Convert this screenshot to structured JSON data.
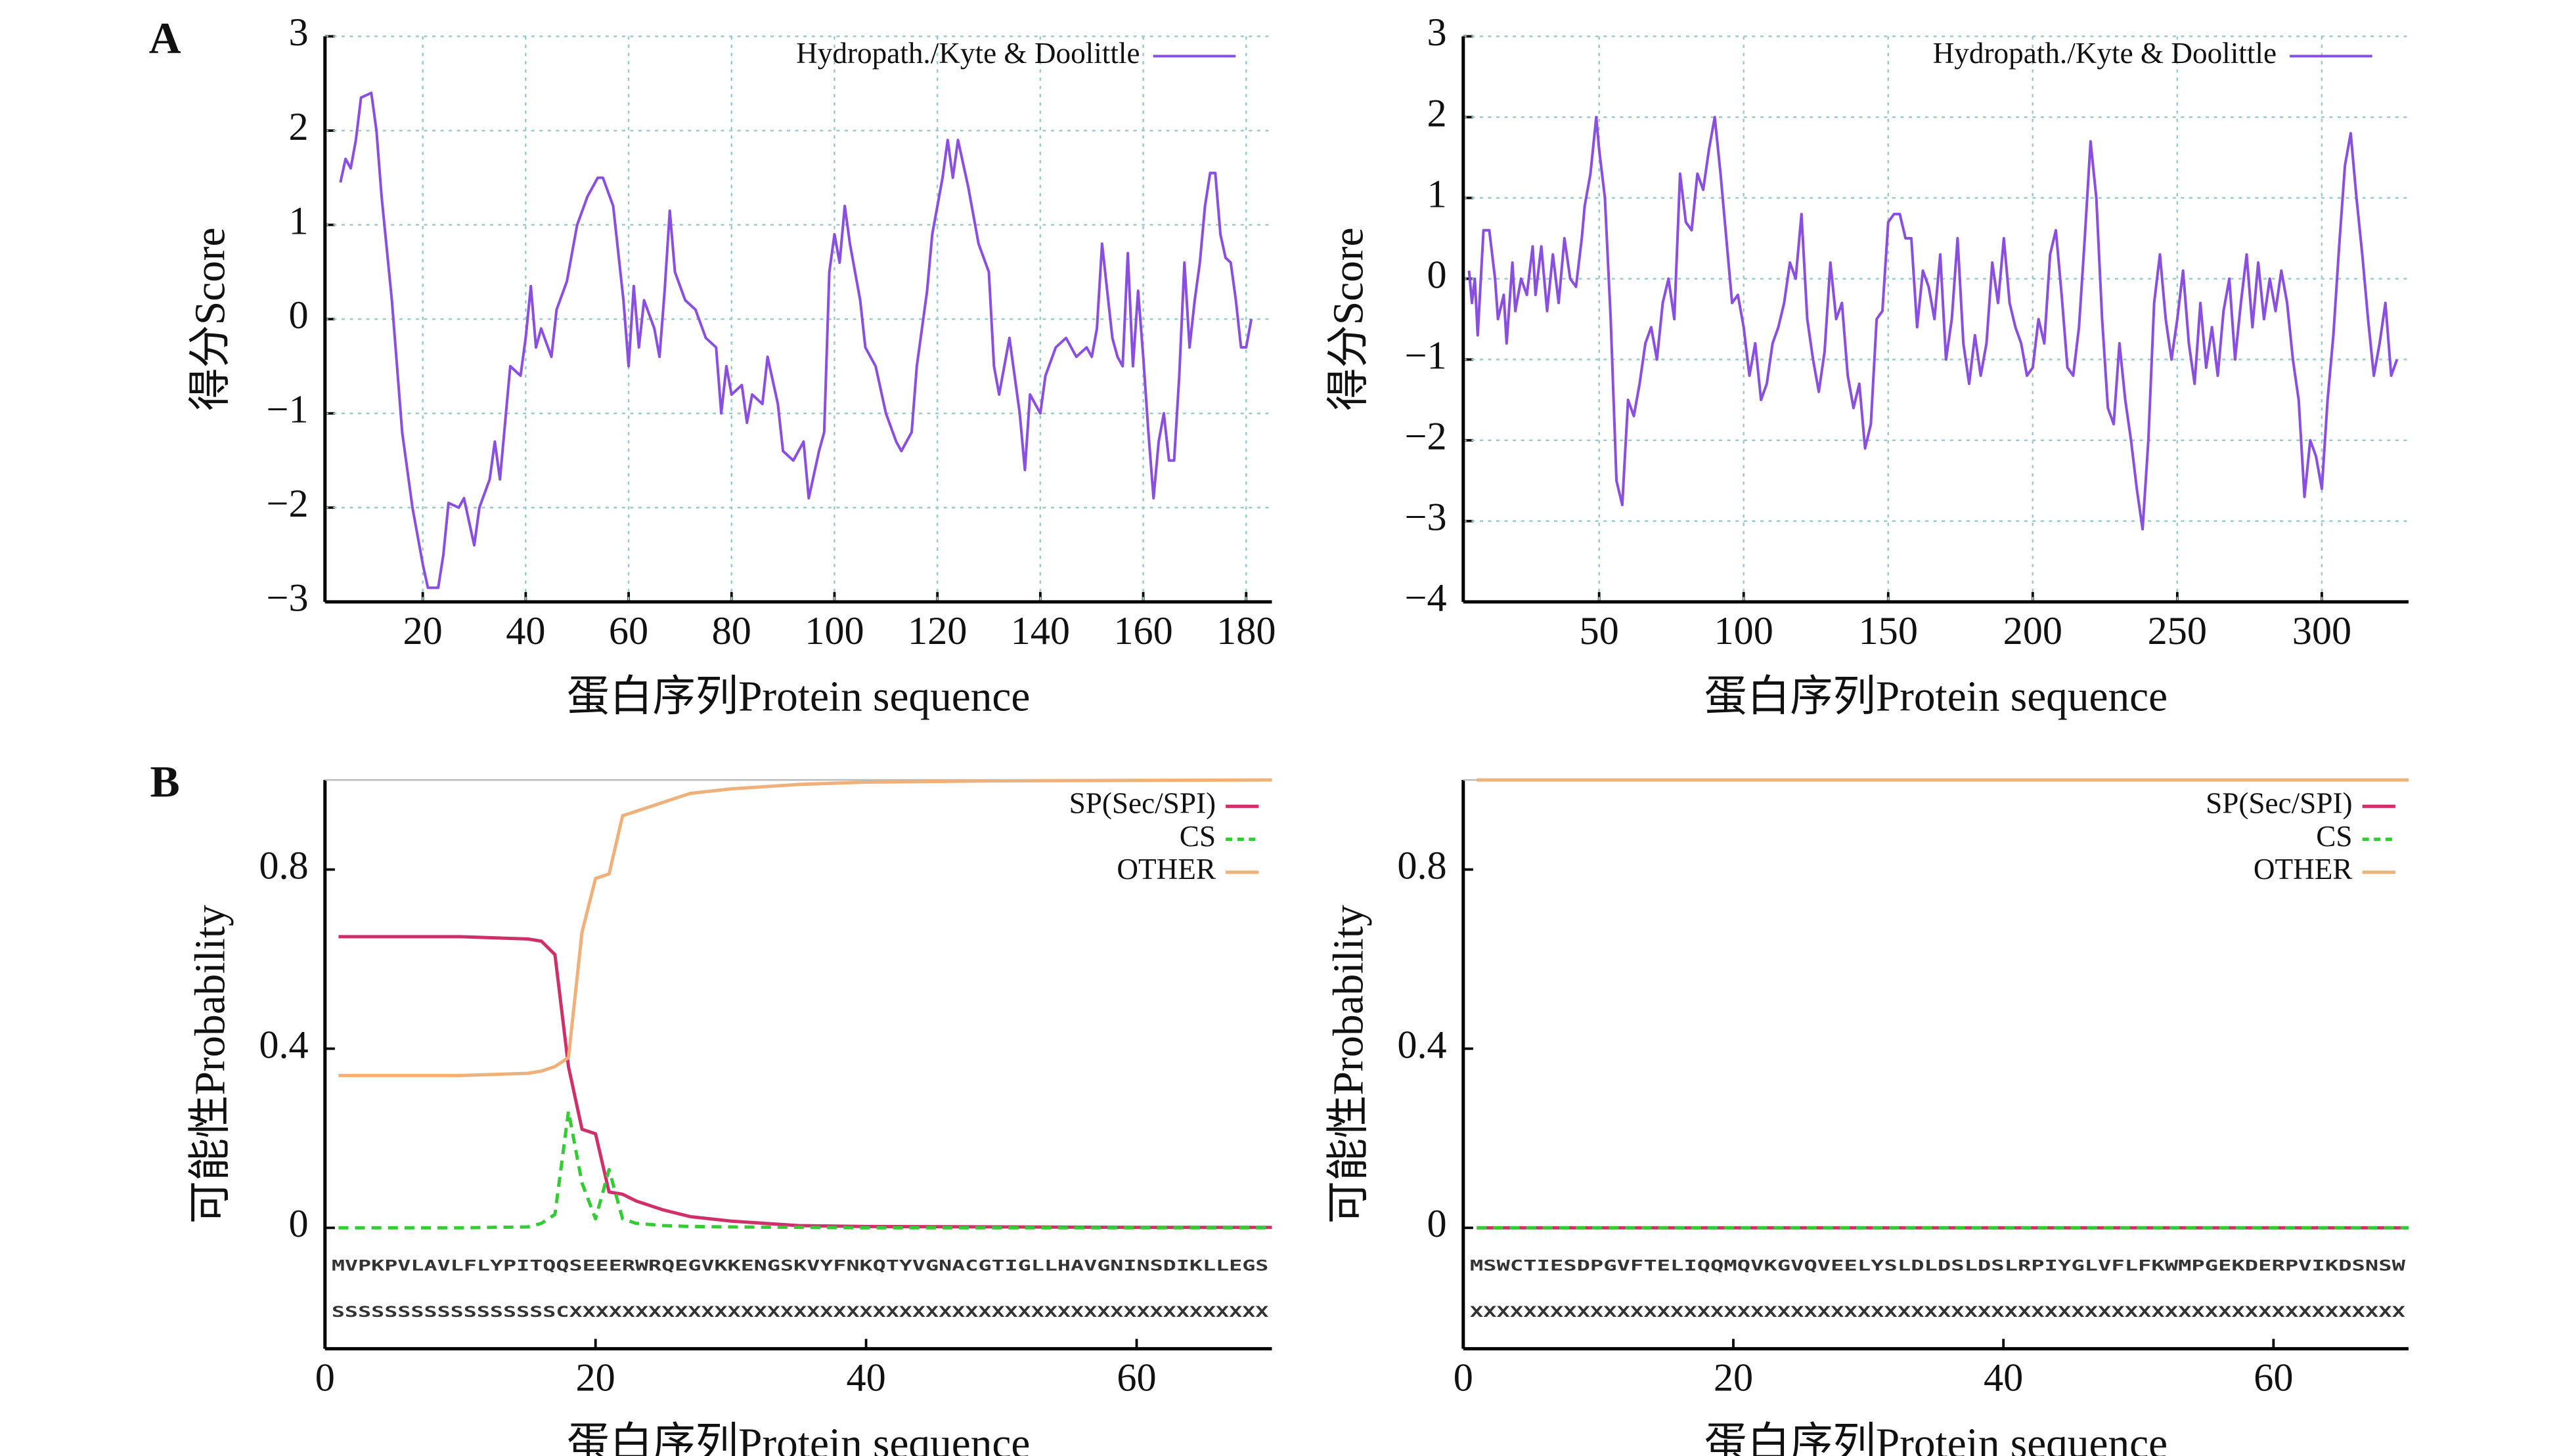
{
  "chart_data": [
    {
      "type": "line",
      "panel": "A",
      "xlabel": "蛋白序列Protein sequence",
      "ylabel": "得分Score",
      "grid": true,
      "legend": "upper right",
      "xlim": [
        1,
        185
      ],
      "xticks": [
        20,
        40,
        60,
        80,
        100,
        120,
        140,
        160,
        180
      ],
      "ylim": [
        -3,
        3
      ],
      "yticks": [
        {
          "value": -3,
          "label": "−3"
        },
        {
          "value": -2,
          "label": "−2"
        },
        {
          "value": -1,
          "label": "−1"
        },
        0,
        1,
        2,
        3
      ],
      "x": [
        4,
        5,
        6,
        7,
        8,
        10,
        11,
        12,
        14,
        15,
        16,
        17,
        18,
        19,
        20,
        21,
        23,
        24,
        25,
        27,
        28,
        30,
        31,
        33,
        34,
        35,
        36,
        37,
        39,
        40,
        41,
        42,
        43,
        45,
        46,
        48,
        50,
        52,
        54,
        55,
        57,
        59,
        60,
        61,
        62,
        63,
        65,
        66,
        67,
        68,
        69,
        71,
        73,
        75,
        77,
        78,
        79,
        80,
        82,
        83,
        84,
        86,
        87,
        89,
        90,
        92,
        94,
        95,
        97,
        98,
        99,
        100,
        101,
        102,
        103,
        105,
        106,
        108,
        110,
        112,
        113,
        115,
        116,
        118,
        119,
        121,
        122,
        123,
        124,
        126,
        128,
        130,
        131,
        132,
        134,
        135,
        136,
        137,
        138,
        140,
        141,
        143,
        145,
        147,
        149,
        150,
        151,
        152,
        153,
        154,
        155,
        156,
        157,
        158,
        159,
        160,
        161,
        162,
        163,
        164,
        165,
        166,
        167,
        168,
        169,
        170,
        171,
        172,
        173,
        174,
        175,
        176,
        177,
        178,
        179,
        180,
        181
      ],
      "series": [
        {
          "name": "Hydropath./Kyte & Doolittle",
          "color": "#8a4fe0",
          "values": [
            1.45,
            1.7,
            1.6,
            1.9,
            2.35,
            2.4,
            2.0,
            1.3,
            0.2,
            -0.5,
            -1.2,
            -1.6,
            -2.0,
            -2.3,
            -2.6,
            -2.85,
            -2.85,
            -2.5,
            -1.95,
            -2.0,
            -1.9,
            -2.4,
            -2.0,
            -1.7,
            -1.3,
            -1.7,
            -1.1,
            -0.5,
            -0.6,
            -0.2,
            0.35,
            -0.3,
            -0.1,
            -0.4,
            0.1,
            0.4,
            1.0,
            1.3,
            1.5,
            1.5,
            1.2,
            0.2,
            -0.5,
            0.35,
            -0.3,
            0.2,
            -0.1,
            -0.4,
            0.3,
            1.15,
            0.5,
            0.2,
            0.1,
            -0.2,
            -0.3,
            -1.0,
            -0.5,
            -0.8,
            -0.7,
            -1.1,
            -0.8,
            -0.9,
            -0.4,
            -0.9,
            -1.4,
            -1.5,
            -1.3,
            -1.9,
            -1.4,
            -1.2,
            0.5,
            0.9,
            0.6,
            1.2,
            0.8,
            0.2,
            -0.3,
            -0.5,
            -1.0,
            -1.3,
            -1.4,
            -1.2,
            -0.5,
            0.3,
            0.9,
            1.5,
            1.9,
            1.5,
            1.9,
            1.4,
            0.8,
            0.5,
            -0.5,
            -0.8,
            -0.2,
            -0.6,
            -1.0,
            -1.6,
            -0.8,
            -1.0,
            -0.6,
            -0.3,
            -0.2,
            -0.4,
            -0.3,
            -0.4,
            -0.1,
            0.8,
            0.3,
            -0.2,
            -0.4,
            -0.5,
            0.7,
            -0.5,
            0.3,
            -0.4,
            -1.2,
            -1.9,
            -1.3,
            -1.0,
            -1.5,
            -1.5,
            -0.6,
            0.6,
            -0.3,
            0.2,
            0.6,
            1.2,
            1.55,
            1.55,
            0.9,
            0.65,
            0.6,
            0.2,
            -0.3,
            -0.3,
            0.0
          ]
        }
      ]
    },
    {
      "type": "line",
      "xlabel": "蛋白序列Protein sequence",
      "ylabel": "得分Score",
      "grid": true,
      "legend": "upper right",
      "xlim": [
        3,
        330
      ],
      "xticks": [
        50,
        100,
        150,
        200,
        250,
        300
      ],
      "ylim": [
        -4,
        3
      ],
      "yticks": [
        {
          "value": -4,
          "label": "−4"
        },
        {
          "value": -3,
          "label": "−3"
        },
        {
          "value": -2,
          "label": "−2"
        },
        {
          "value": -1,
          "label": "−1"
        },
        0,
        1,
        2,
        3
      ],
      "x": [
        5,
        6,
        7,
        8,
        10,
        12,
        14,
        15,
        17,
        18,
        20,
        21,
        23,
        25,
        27,
        28,
        30,
        32,
        34,
        36,
        38,
        40,
        42,
        44,
        45,
        47,
        49,
        50,
        52,
        54,
        55,
        56,
        58,
        60,
        62,
        64,
        66,
        68,
        70,
        72,
        74,
        76,
        78,
        80,
        82,
        84,
        86,
        88,
        90,
        92,
        94,
        96,
        98,
        100,
        102,
        104,
        106,
        108,
        110,
        112,
        114,
        116,
        118,
        120,
        122,
        124,
        126,
        128,
        130,
        132,
        134,
        136,
        138,
        140,
        142,
        144,
        146,
        148,
        150,
        152,
        154,
        156,
        158,
        160,
        162,
        164,
        166,
        168,
        170,
        172,
        174,
        176,
        178,
        180,
        182,
        184,
        186,
        188,
        190,
        192,
        194,
        196,
        198,
        200,
        202,
        204,
        206,
        208,
        210,
        212,
        214,
        216,
        218,
        220,
        222,
        224,
        226,
        228,
        230,
        232,
        234,
        236,
        238,
        240,
        242,
        244,
        246,
        248,
        250,
        252,
        254,
        256,
        258,
        260,
        262,
        264,
        266,
        268,
        270,
        272,
        274,
        276,
        278,
        280,
        282,
        284,
        286,
        288,
        290,
        292,
        294,
        296,
        298,
        300,
        302,
        304,
        306,
        308,
        310,
        312,
        314,
        316,
        318,
        320,
        322,
        324,
        326
      ],
      "series": [
        {
          "name": "Hydropath./Kyte & Doolittle",
          "color": "#8a4fe0",
          "values": [
            0.1,
            -0.3,
            0.0,
            -0.7,
            0.6,
            0.6,
            0.0,
            -0.5,
            -0.2,
            -0.8,
            0.2,
            -0.4,
            0.0,
            -0.2,
            0.4,
            -0.2,
            0.4,
            -0.4,
            0.3,
            -0.3,
            0.5,
            0.0,
            -0.1,
            0.5,
            0.9,
            1.3,
            2.0,
            1.6,
            1.0,
            -0.5,
            -1.5,
            -2.5,
            -2.8,
            -1.5,
            -1.7,
            -1.3,
            -0.8,
            -0.6,
            -1.0,
            -0.3,
            0.0,
            -0.5,
            1.3,
            0.7,
            0.6,
            1.3,
            1.1,
            1.6,
            2.0,
            1.3,
            0.5,
            -0.3,
            -0.2,
            -0.6,
            -1.2,
            -0.8,
            -1.5,
            -1.3,
            -0.8,
            -0.6,
            -0.3,
            0.2,
            0.0,
            0.8,
            -0.5,
            -1.0,
            -1.4,
            -0.9,
            0.2,
            -0.5,
            -0.3,
            -1.2,
            -1.6,
            -1.3,
            -2.1,
            -1.8,
            -0.5,
            -0.4,
            0.7,
            0.8,
            0.8,
            0.5,
            0.5,
            -0.6,
            0.1,
            -0.1,
            -0.5,
            0.3,
            -1.0,
            -0.5,
            0.5,
            -0.8,
            -1.3,
            -0.7,
            -1.2,
            -0.8,
            0.2,
            -0.3,
            0.5,
            -0.3,
            -0.6,
            -0.8,
            -1.2,
            -1.1,
            -0.5,
            -0.8,
            0.3,
            0.6,
            -0.2,
            -1.1,
            -1.2,
            -0.6,
            0.5,
            1.7,
            1.0,
            -0.5,
            -1.6,
            -1.8,
            -0.8,
            -1.5,
            -2.0,
            -2.6,
            -3.1,
            -2.0,
            -0.3,
            0.3,
            -0.5,
            -1.0,
            -0.5,
            0.1,
            -0.8,
            -1.3,
            -0.3,
            -1.1,
            -0.6,
            -1.2,
            -0.4,
            0.0,
            -1.0,
            -0.3,
            0.3,
            -0.6,
            0.2,
            -0.5,
            0.0,
            -0.4,
            0.1,
            -0.3,
            -1.0,
            -1.5,
            -2.7,
            -2.0,
            -2.2,
            -2.6,
            -1.5,
            -0.7,
            0.4,
            1.4,
            1.8,
            1.0,
            0.3,
            -0.5,
            -1.2,
            -0.8,
            -0.3,
            -1.2,
            -1.0
          ]
        }
      ]
    },
    {
      "type": "line",
      "panel": "B",
      "xlabel": "蛋白序列Protein sequence",
      "ylabel": "可能性Probability",
      "grid": false,
      "legend": "upper right",
      "xlim": [
        0,
        70
      ],
      "xticks": [
        0,
        20,
        40,
        60
      ],
      "ylim": [
        -0.27,
        1.0
      ],
      "yticks": [
        0,
        0.4,
        0.8
      ],
      "sequence_rows": [
        "MVPKPVLAVLFLYPITQQSEEERWRQEGVKKENGSKVYFNKQTYVGNACGTIGLLHAVGNINSDIKLLEGS",
        "SSSSSSSSSSSSSSSSSCXXXXXXXXXXXXXXXXXXXXXXXXXXXXXXXXXXXXXXXXXXXXXXXXXXXXX"
      ],
      "x": [
        1,
        5,
        10,
        15,
        16,
        17,
        18,
        19,
        20,
        21,
        22,
        23,
        25,
        27,
        30,
        35,
        40,
        50,
        60,
        70
      ],
      "series": [
        {
          "name": "SP(Sec/SPI)",
          "color": "#d0306a",
          "values": [
            0.65,
            0.65,
            0.65,
            0.645,
            0.64,
            0.61,
            0.36,
            0.22,
            0.21,
            0.08,
            0.075,
            0.06,
            0.04,
            0.025,
            0.015,
            0.005,
            0.003,
            0.002,
            0.001,
            0.001
          ]
        },
        {
          "name": "CS",
          "color": "#33cc33",
          "dashed": true,
          "values": [
            0,
            0,
            0,
            0.002,
            0.01,
            0.03,
            0.26,
            0.1,
            0.02,
            0.13,
            0.02,
            0.01,
            0.005,
            0.003,
            0.002,
            0.001,
            0,
            0,
            0,
            0
          ]
        },
        {
          "name": "OTHER",
          "color": "#f0b07a",
          "values": [
            0.34,
            0.34,
            0.34,
            0.345,
            0.35,
            0.36,
            0.38,
            0.66,
            0.78,
            0.79,
            0.92,
            0.93,
            0.95,
            0.97,
            0.98,
            0.99,
            0.995,
            0.998,
            0.999,
            1.0
          ]
        }
      ]
    },
    {
      "type": "line",
      "xlabel": "蛋白序列Protein sequence",
      "ylabel": "可能性Probability",
      "grid": false,
      "legend": "upper right",
      "xlim": [
        0,
        70
      ],
      "xticks": [
        0,
        20,
        40,
        60
      ],
      "ylim": [
        -0.27,
        1.0
      ],
      "yticks": [
        0,
        0.4,
        0.8
      ],
      "sequence_rows": [
        "MSWCTIESDPGVFTELIQQMQVKGVQVEELYSLDLDSLDSLRPIYGLVFLFKWMPGEKDERPVIKDSNSW",
        "XXXXXXXXXXXXXXXXXXXXXXXXXXXXXXXXXXXXXXXXXXXXXXXXXXXXXXXXXXXXXXXXXXXXXX"
      ],
      "x": [
        1,
        70
      ],
      "series": [
        {
          "name": "SP(Sec/SPI)",
          "color": "#d0306a",
          "values": [
            0,
            0
          ]
        },
        {
          "name": "CS",
          "color": "#33cc33",
          "dashed": true,
          "values": [
            0,
            0
          ]
        },
        {
          "name": "OTHER",
          "color": "#f0b07a",
          "values": [
            1.0,
            1.0
          ]
        }
      ]
    }
  ]
}
